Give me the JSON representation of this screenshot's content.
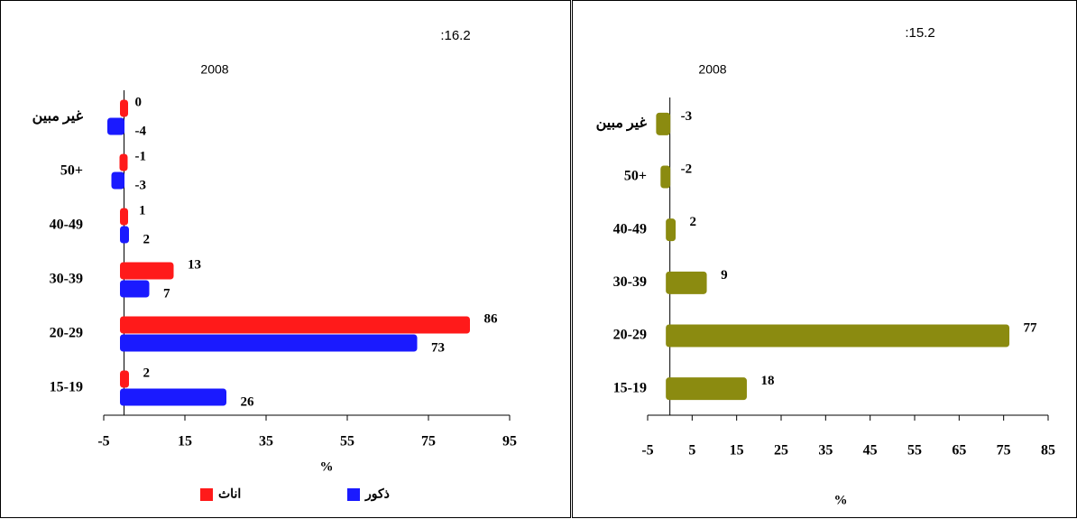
{
  "chart_data": [
    {
      "type": "bar",
      "orientation": "horizontal",
      "title": ":16.2",
      "subtitle": "2008",
      "categories": [
        "غير مبين",
        "50+",
        "40-49",
        "30-39",
        "20-29",
        "15-19"
      ],
      "series": [
        {
          "name": "اناث",
          "color": "#ff1a1a",
          "values": [
            0,
            -1,
            1,
            13,
            86,
            2
          ]
        },
        {
          "name": "ذكور",
          "color": "#1a1aff",
          "values": [
            -4,
            -3,
            2,
            7,
            73,
            26
          ]
        }
      ],
      "xlim": [
        -5,
        95
      ],
      "xticks": [
        -5,
        15,
        35,
        55,
        75,
        95
      ],
      "xlabel": "%",
      "legend": "bottom"
    },
    {
      "type": "bar",
      "orientation": "horizontal",
      "title": ":15.2",
      "subtitle": "2008",
      "categories": [
        "غير مبين",
        "50+",
        "40-49",
        "30-39",
        "20-29",
        "15-19"
      ],
      "values": [
        -3,
        -2,
        2,
        9,
        77,
        18
      ],
      "color": "#8b8b10",
      "xlim": [
        -5,
        85
      ],
      "xticks": [
        -5,
        5,
        15,
        25,
        35,
        45,
        55,
        65,
        75,
        85
      ],
      "xlabel": "%"
    }
  ]
}
